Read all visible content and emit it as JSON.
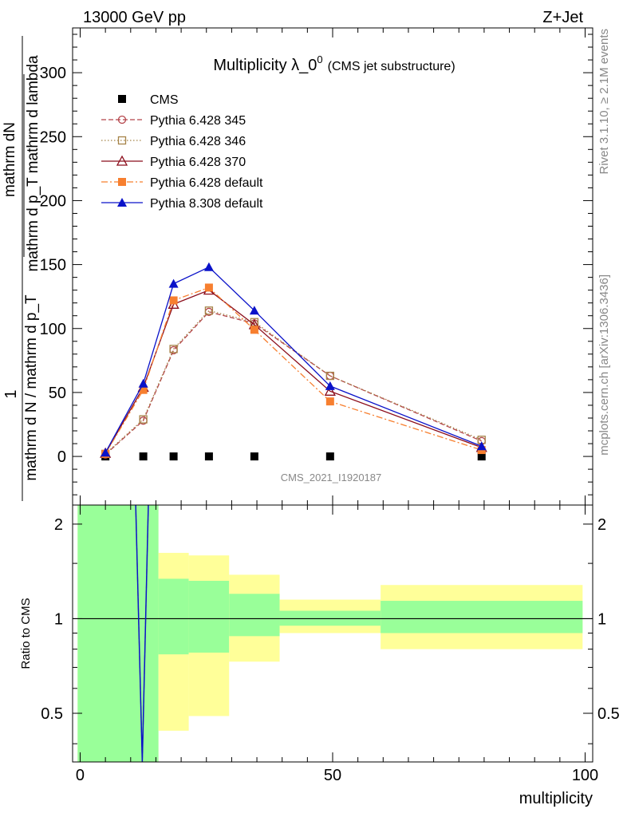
{
  "header": {
    "left": "13000 GeV pp",
    "right": "Z+Jet"
  },
  "chart_data": [
    {
      "type": "line",
      "title": "Multiplicity λ_0",
      "title_sup": "0",
      "subtitle": "(CMS jet substructure)",
      "ylabel_num": "1",
      "ylabel_num_frac": "mathrm dN",
      "ylabel_den_frac": "mathrm d p_T mathrm d lambda",
      "ylabel_den": "mathrm d N / mathrm d p_T",
      "ylabel_den_frac_sub": "T",
      "xlim": [
        -1.5,
        101.5
      ],
      "ylim": [
        -38,
        335
      ],
      "yticks": [
        0,
        50,
        100,
        150,
        200,
        250,
        300
      ],
      "legend_position": "top-left",
      "watermark": "CMS_2021_I1920187",
      "x": [
        5,
        12.5,
        18.5,
        25.5,
        34.5,
        49.5,
        79.5
      ],
      "series": [
        {
          "name": "CMS",
          "color": "#000000",
          "style": "none",
          "marker": "square-filled",
          "values": [
            0,
            0,
            0,
            0,
            0,
            0,
            0
          ]
        },
        {
          "name": "Pythia 6.428 345",
          "color": "#b5454b",
          "style": "dashed",
          "marker": "circle-open",
          "values": [
            1.5,
            28,
            83,
            113,
            104,
            63,
            12
          ]
        },
        {
          "name": "Pythia 6.428 346",
          "color": "#a58347",
          "style": "dotted",
          "marker": "square-open",
          "values": [
            2,
            29,
            84,
            114,
            105,
            63,
            13
          ]
        },
        {
          "name": "Pythia 6.428 370",
          "color": "#8b0c1a",
          "style": "solid",
          "marker": "triangle-open",
          "values": [
            2.5,
            54,
            119,
            130,
            103,
            51,
            7
          ]
        },
        {
          "name": "Pythia 6.428 default",
          "color": "#f77f2f",
          "style": "dashdot",
          "marker": "square-filled",
          "values": [
            2,
            52,
            122,
            132,
            99,
            43,
            5
          ]
        },
        {
          "name": "Pythia 8.308 default",
          "color": "#0a12c9",
          "style": "solid",
          "marker": "triangle-filled",
          "values": [
            3,
            57,
            135,
            148,
            114,
            55,
            8
          ]
        }
      ]
    },
    {
      "type": "area",
      "ylabel": "Ratio to CMS",
      "xlabel": "multiplicity",
      "xlim": [
        -1.5,
        101.5
      ],
      "ylim": [
        0.35,
        2.3
      ],
      "yscale": "log",
      "yticks": [
        0.5,
        1,
        2
      ],
      "ytick_labels": [
        "0.5",
        "1",
        "2"
      ],
      "xticks": [
        0,
        50,
        100
      ],
      "xtick_labels": [
        "0",
        "50",
        "100"
      ],
      "band_colors": {
        "inner": "#99ff99",
        "outer": "#ffff99"
      },
      "bins": [
        {
          "lo": -0.5,
          "hi": 15.5,
          "inner": [
            0.35,
            2.3
          ],
          "outer": [
            0.35,
            2.3
          ]
        },
        {
          "lo": 15.5,
          "hi": 21.5,
          "inner": [
            0.77,
            1.34
          ],
          "outer": [
            0.44,
            1.62
          ]
        },
        {
          "lo": 21.5,
          "hi": 29.5,
          "inner": [
            0.78,
            1.32
          ],
          "outer": [
            0.49,
            1.59
          ]
        },
        {
          "lo": 29.5,
          "hi": 39.5,
          "inner": [
            0.88,
            1.2
          ],
          "outer": [
            0.73,
            1.38
          ]
        },
        {
          "lo": 39.5,
          "hi": 59.5,
          "inner": [
            0.95,
            1.06
          ],
          "outer": [
            0.9,
            1.15
          ]
        },
        {
          "lo": 59.5,
          "hi": 99.5,
          "inner": [
            0.9,
            1.14
          ],
          "outer": [
            0.8,
            1.28
          ]
        }
      ],
      "ratio_line": {
        "x": [
          11,
          12.3,
          13.5
        ],
        "values": [
          2.3,
          0.35,
          2.3
        ],
        "color": "#0a12c9"
      }
    }
  ],
  "sidebar": {
    "rivet": "Rivet 3.1.10, ≥ 2.1M events",
    "mcplots": "mcplots.cern.ch [arXiv:1306.3436]"
  }
}
